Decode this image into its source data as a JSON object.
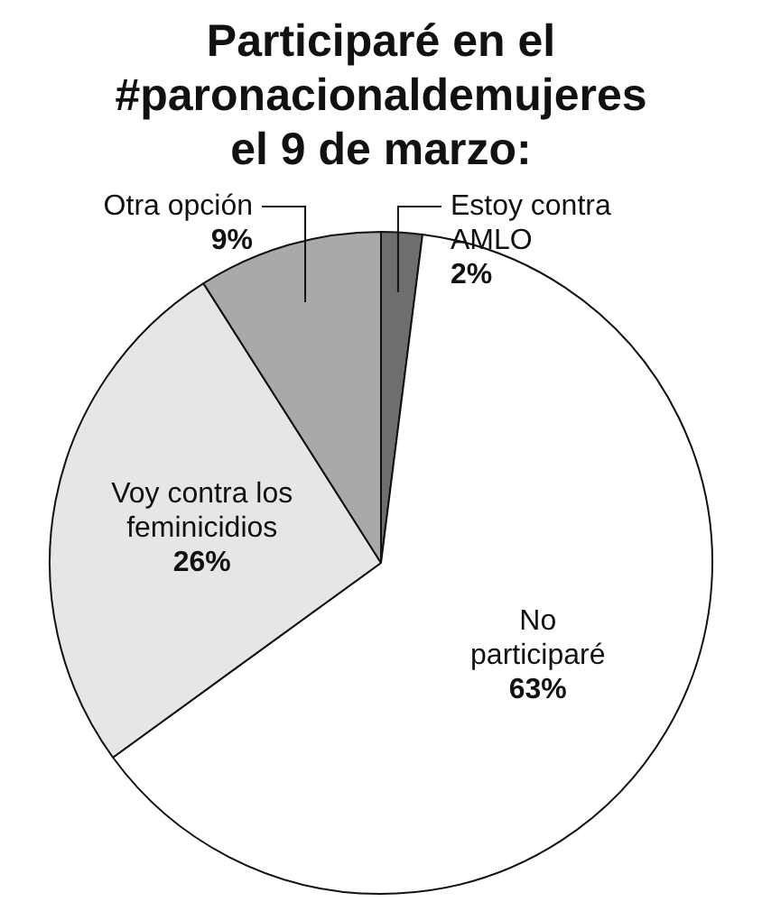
{
  "chart_data": {
    "type": "pie",
    "title": "Participaré en el\n#paronacionaldemujeres\nel 9 de marzo:",
    "categories": [
      "Estoy contra\nAMLO",
      "No\nparticiparé",
      "Voy contra los\nfeminicidios",
      "Otra opción"
    ],
    "values": [
      2,
      63,
      26,
      9
    ],
    "colors": [
      "#6e6e6e",
      "#ffffff",
      "#e6e6e6",
      "#a9a9a9"
    ],
    "value_labels": [
      "2%",
      "63%",
      "26%",
      "9%"
    ],
    "legend": false
  }
}
